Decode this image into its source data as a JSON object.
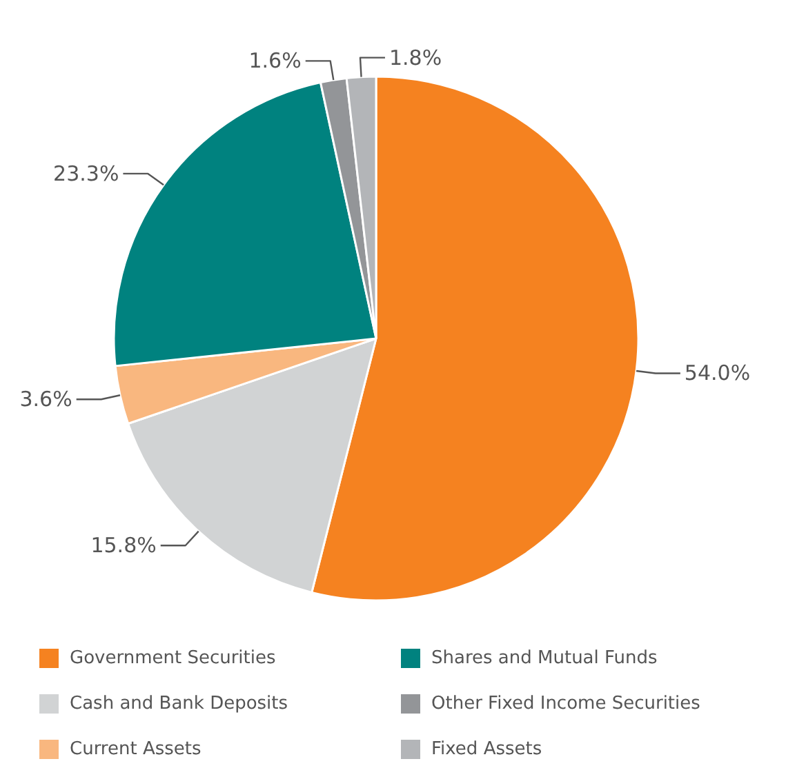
{
  "chart_data": {
    "type": "pie",
    "categories": [
      "Government Securities",
      "Cash and Bank Deposits",
      "Current Assets",
      "Shares and Mutual Funds",
      "Other Fixed Income Securities",
      "Fixed Assets"
    ],
    "values": [
      54.0,
      15.8,
      3.6,
      23.3,
      1.6,
      1.8
    ],
    "colors": [
      "#f58220",
      "#d1d3d4",
      "#f9b77f",
      "#00827f",
      "#939598",
      "#b3b5b8"
    ],
    "value_labels": [
      "54.0%",
      "15.8%",
      "3.6%",
      "23.3%",
      "1.6%",
      "1.8%"
    ],
    "legend": "bottom"
  }
}
